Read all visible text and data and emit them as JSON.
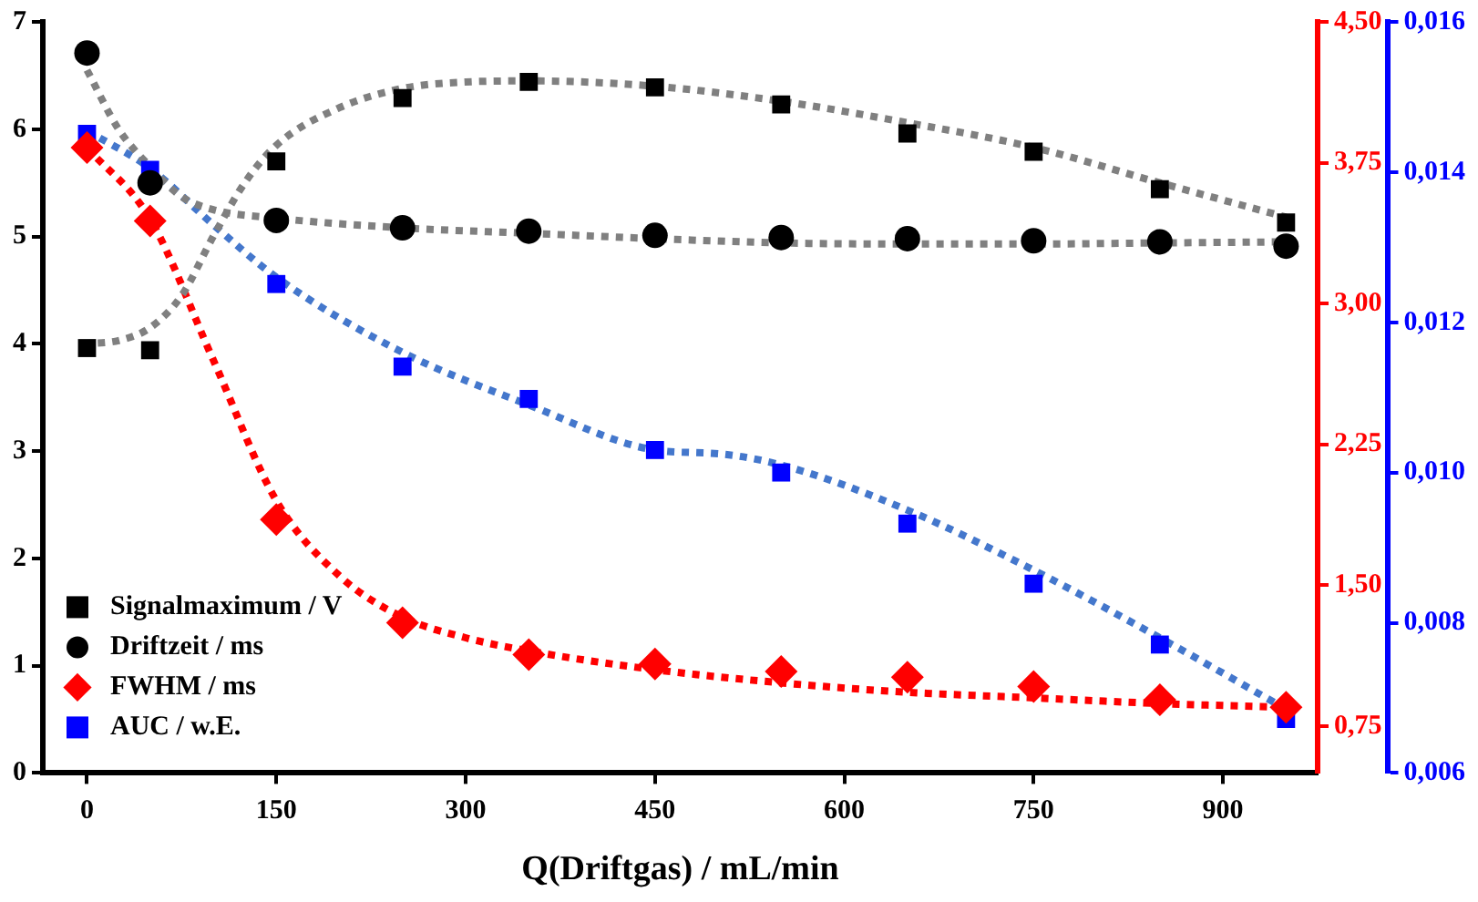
{
  "chart_data": {
    "type": "scatter",
    "xlabel": "Q(Driftgas) / mL/min",
    "xlim": [
      -35,
      975
    ],
    "xticks": [
      0,
      150,
      300,
      450,
      600,
      750,
      900
    ],
    "ylim": [
      0,
      7
    ],
    "yticks": [
      0,
      1,
      2,
      3,
      4,
      5,
      6,
      7
    ],
    "y2lim": [
      0.5,
      4.5
    ],
    "y2ticks": [
      {
        "value": 0.75,
        "label": "0,75"
      },
      {
        "value": 1.5,
        "label": "1,50"
      },
      {
        "value": 2.25,
        "label": "2,25"
      },
      {
        "value": 3,
        "label": "3,00"
      },
      {
        "value": 3.75,
        "label": "3,75"
      },
      {
        "value": 4.5,
        "label": "4,50"
      }
    ],
    "y3lim": [
      0.006,
      0.016
    ],
    "y3ticks": [
      {
        "value": 0.006,
        "label": "0,006"
      },
      {
        "value": 0.008,
        "label": "0,008"
      },
      {
        "value": 0.01,
        "label": "0,010"
      },
      {
        "value": 0.012,
        "label": "0,012"
      },
      {
        "value": 0.014,
        "label": "0,014"
      },
      {
        "value": 0.016,
        "label": "0,016"
      }
    ],
    "grid": false,
    "legend": "bottom left",
    "series": [
      {
        "type": "line",
        "color": "#808080",
        "marker": "none",
        "line_style": "dotted",
        "x": [
          -3,
          25,
          50,
          75,
          100,
          125,
          150,
          200,
          250,
          300,
          350,
          450,
          550,
          650,
          750,
          850,
          950
        ],
        "values": [
          4.0,
          4.03,
          4.15,
          4.45,
          5.0,
          5.5,
          5.85,
          6.2,
          6.38,
          6.44,
          6.45,
          6.4,
          6.26,
          6.06,
          5.83,
          5.5,
          5.18
        ]
      },
      {
        "type": "line",
        "color": "#808080",
        "marker": "none",
        "line_style": "dotted",
        "x": [
          0,
          25,
          50,
          75,
          100,
          150,
          250,
          350,
          450,
          550,
          650,
          750,
          850,
          950
        ],
        "values": [
          6.55,
          6.0,
          5.65,
          5.37,
          5.25,
          5.17,
          5.08,
          5.03,
          4.98,
          4.94,
          4.93,
          4.93,
          4.94,
          4.95
        ]
      },
      {
        "type": "line",
        "color": "#ff0000",
        "marker": "none",
        "line_style": "dotted",
        "axis": "y2",
        "x": [
          0,
          50,
          100,
          150,
          200,
          250,
          300,
          350,
          450,
          550,
          650,
          750,
          850,
          950
        ],
        "values": [
          3.83,
          3.45,
          2.7,
          1.95,
          1.55,
          1.33,
          1.22,
          1.15,
          1.05,
          0.98,
          0.93,
          0.9,
          0.87,
          0.85
        ]
      },
      {
        "type": "line",
        "color": "#4477cc",
        "marker": "none",
        "line_style": "dotted",
        "axis": "y3",
        "x": [
          0,
          50,
          100,
          150,
          250,
          350,
          450,
          500,
          550,
          650,
          750,
          850,
          950
        ],
        "values": [
          0.01455,
          0.01405,
          0.0133,
          0.0126,
          0.0116,
          0.0109,
          0.0103,
          0.01025,
          0.0101,
          0.0095,
          0.0087,
          0.0078,
          0.00685
        ]
      },
      {
        "name": "Signalmaximum / V",
        "color": "#000000",
        "marker": "square",
        "x": [
          0,
          50,
          150,
          250,
          350,
          450,
          550,
          650,
          750,
          850,
          950
        ],
        "values": [
          3.96,
          3.94,
          5.7,
          6.29,
          6.44,
          6.39,
          6.23,
          5.96,
          5.79,
          5.44,
          5.13
        ]
      },
      {
        "name": "Driftzeit / ms",
        "color": "#000000",
        "marker": "circle",
        "x": [
          0,
          50,
          150,
          250,
          350,
          450,
          550,
          650,
          750,
          850,
          950
        ],
        "values": [
          6.71,
          5.5,
          5.15,
          5.08,
          5.05,
          5.01,
          4.99,
          4.98,
          4.96,
          4.95,
          4.91
        ]
      },
      {
        "name": "FWHM / ms",
        "color": "#ff0000",
        "marker": "diamond",
        "axis": "y2",
        "x": [
          0,
          50,
          150,
          250,
          350,
          450,
          550,
          650,
          750,
          850,
          950
        ],
        "values": [
          3.83,
          3.44,
          1.85,
          1.3,
          1.13,
          1.08,
          1.04,
          1.01,
          0.96,
          0.89,
          0.85
        ]
      },
      {
        "name": "AUC / w.E.",
        "color": "#0000ff",
        "marker": "square",
        "axis": "y3",
        "x": [
          0,
          50,
          150,
          250,
          350,
          450,
          550,
          650,
          750,
          850,
          950
        ],
        "values": [
          0.01451,
          0.01403,
          0.01251,
          0.01141,
          0.01098,
          0.0103,
          0.01,
          0.00932,
          0.00852,
          0.00771,
          0.00672
        ]
      }
    ]
  }
}
